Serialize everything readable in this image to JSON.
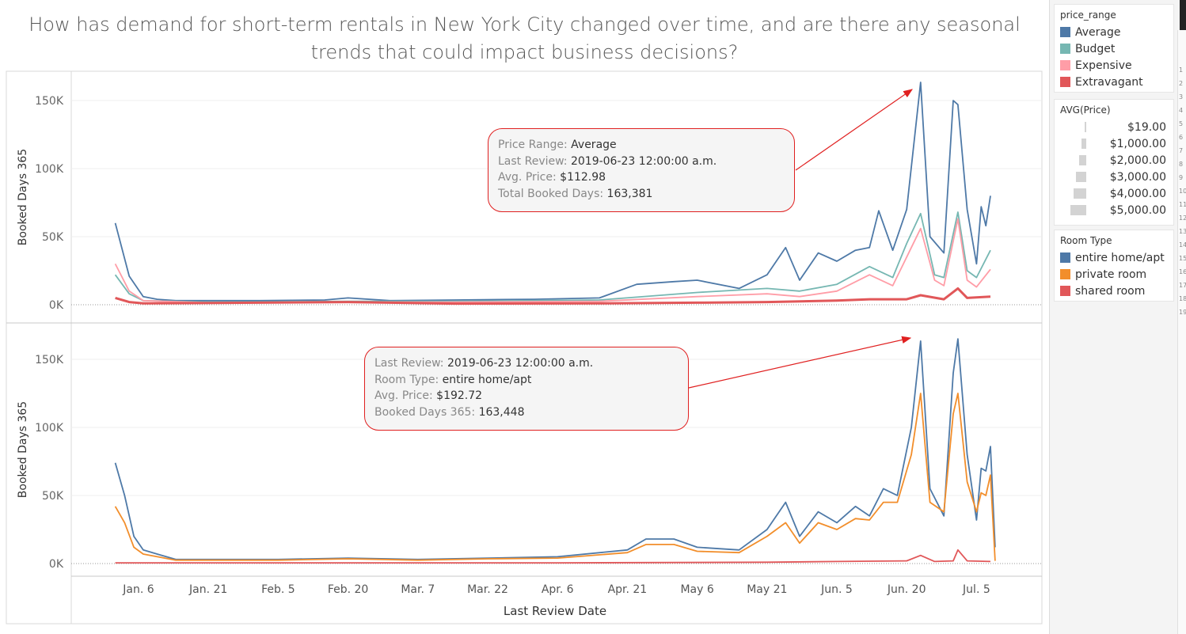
{
  "title": "How has demand for short-term rentals in New York City changed over time, and are there any seasonal trends that could impact business decisions?",
  "legends": {
    "price_range": {
      "title": "price_range",
      "items": [
        {
          "label": "Average",
          "color": "#4e79a7"
        },
        {
          "label": "Budget",
          "color": "#76b7b2"
        },
        {
          "label": "Expensive",
          "color": "#ff9da7"
        },
        {
          "label": "Extravagant",
          "color": "#e15759"
        }
      ]
    },
    "avg_price": {
      "title": "AVG(Price)",
      "items": [
        {
          "label": "$19.00",
          "value": 19
        },
        {
          "label": "$1,000.00",
          "value": 1000
        },
        {
          "label": "$2,000.00",
          "value": 2000
        },
        {
          "label": "$3,000.00",
          "value": 3000
        },
        {
          "label": "$4,000.00",
          "value": 4000
        },
        {
          "label": "$5,000.00",
          "value": 5000
        }
      ]
    },
    "room_type": {
      "title": "Room Type",
      "items": [
        {
          "label": "entire home/apt",
          "color": "#4e79a7"
        },
        {
          "label": "private room",
          "color": "#f28e2b"
        },
        {
          "label": "shared room",
          "color": "#e15759"
        }
      ]
    }
  },
  "tooltips": {
    "top": [
      {
        "key": "Price Range: ",
        "value": "Average"
      },
      {
        "key": "Last Review: ",
        "value": "2019-06-23 12:00:00 a.m."
      },
      {
        "key": "Avg. Price: ",
        "value": "$112.98"
      },
      {
        "key": "Total Booked Days: ",
        "value": "163,381"
      }
    ],
    "bottom": [
      {
        "key": "Last Review: ",
        "value": "2019-06-23 12:00:00 a.m."
      },
      {
        "key": "Room Type: ",
        "value": "entire home/apt"
      },
      {
        "key": "Avg. Price: ",
        "value": "$192.72"
      },
      {
        "key": "Booked Days 365: ",
        "value": "163,448"
      }
    ]
  },
  "scroll_ticks": [
    "1",
    "2",
    "3",
    "4",
    "5",
    "6",
    "7",
    "8",
    "9",
    "10",
    "11",
    "12",
    "13",
    "14",
    "15",
    "16",
    "17",
    "18",
    "19"
  ],
  "chart_data": [
    {
      "type": "line",
      "ylabel": "Booked Days 365",
      "ylim": [
        0,
        170000
      ],
      "yticks": [
        0,
        50000,
        100000,
        150000
      ],
      "ytick_labels": [
        "0K",
        "50K",
        "100K",
        "150K"
      ],
      "x_start": "2019-01-01",
      "x_end": "2019-07-08",
      "series": [
        {
          "name": "Average",
          "color": "#4e79a7",
          "points": [
            [
              "2019-01-01",
              60000
            ],
            [
              "2019-01-04",
              21000
            ],
            [
              "2019-01-07",
              6000
            ],
            [
              "2019-01-10",
              4000
            ],
            [
              "2019-01-14",
              3000
            ],
            [
              "2019-01-21",
              3000
            ],
            [
              "2019-02-01",
              3000
            ],
            [
              "2019-02-15",
              3500
            ],
            [
              "2019-02-20",
              5000
            ],
            [
              "2019-03-01",
              3000
            ],
            [
              "2019-03-15",
              3500
            ],
            [
              "2019-04-01",
              4000
            ],
            [
              "2019-04-15",
              5000
            ],
            [
              "2019-04-23",
              15000
            ],
            [
              "2019-05-01",
              17000
            ],
            [
              "2019-05-06",
              18000
            ],
            [
              "2019-05-15",
              12000
            ],
            [
              "2019-05-21",
              22000
            ],
            [
              "2019-05-25",
              42000
            ],
            [
              "2019-05-28",
              18000
            ],
            [
              "2019-06-01",
              38000
            ],
            [
              "2019-06-05",
              32000
            ],
            [
              "2019-06-09",
              40000
            ],
            [
              "2019-06-12",
              42000
            ],
            [
              "2019-06-14",
              69000
            ],
            [
              "2019-06-17",
              40000
            ],
            [
              "2019-06-20",
              70000
            ],
            [
              "2019-06-23",
              163381
            ],
            [
              "2019-06-25",
              50000
            ],
            [
              "2019-06-28",
              38000
            ],
            [
              "2019-06-30",
              150000
            ],
            [
              "2019-07-01",
              147000
            ],
            [
              "2019-07-03",
              70000
            ],
            [
              "2019-07-05",
              30000
            ],
            [
              "2019-07-06",
              72000
            ],
            [
              "2019-07-07",
              58000
            ],
            [
              "2019-07-08",
              80000
            ]
          ]
        },
        {
          "name": "Budget",
          "color": "#76b7b2",
          "points": [
            [
              "2019-01-01",
              22000
            ],
            [
              "2019-01-04",
              8000
            ],
            [
              "2019-01-07",
              3000
            ],
            [
              "2019-01-21",
              2000
            ],
            [
              "2019-02-20",
              2500
            ],
            [
              "2019-03-15",
              2500
            ],
            [
              "2019-04-15",
              3500
            ],
            [
              "2019-05-06",
              9000
            ],
            [
              "2019-05-21",
              12000
            ],
            [
              "2019-05-28",
              10000
            ],
            [
              "2019-06-05",
              15000
            ],
            [
              "2019-06-12",
              28000
            ],
            [
              "2019-06-17",
              20000
            ],
            [
              "2019-06-20",
              45000
            ],
            [
              "2019-06-23",
              67000
            ],
            [
              "2019-06-26",
              22000
            ],
            [
              "2019-06-28",
              20000
            ],
            [
              "2019-07-01",
              68000
            ],
            [
              "2019-07-03",
              25000
            ],
            [
              "2019-07-05",
              20000
            ],
            [
              "2019-07-08",
              40000
            ]
          ]
        },
        {
          "name": "Expensive",
          "color": "#ff9da7",
          "points": [
            [
              "2019-01-01",
              30000
            ],
            [
              "2019-01-04",
              10000
            ],
            [
              "2019-01-07",
              3000
            ],
            [
              "2019-01-21",
              1500
            ],
            [
              "2019-02-20",
              2000
            ],
            [
              "2019-03-15",
              2000
            ],
            [
              "2019-04-15",
              2500
            ],
            [
              "2019-05-06",
              6000
            ],
            [
              "2019-05-21",
              8000
            ],
            [
              "2019-05-28",
              6000
            ],
            [
              "2019-06-05",
              10000
            ],
            [
              "2019-06-12",
              22000
            ],
            [
              "2019-06-17",
              14000
            ],
            [
              "2019-06-20",
              35000
            ],
            [
              "2019-06-23",
              56000
            ],
            [
              "2019-06-26",
              18000
            ],
            [
              "2019-06-28",
              14000
            ],
            [
              "2019-07-01",
              63000
            ],
            [
              "2019-07-03",
              18000
            ],
            [
              "2019-07-05",
              13000
            ],
            [
              "2019-07-08",
              26000
            ]
          ]
        },
        {
          "name": "Extravagant",
          "color": "#e15759",
          "points": [
            [
              "2019-01-01",
              5000
            ],
            [
              "2019-01-04",
              2000
            ],
            [
              "2019-01-07",
              1000
            ],
            [
              "2019-02-20",
              2000
            ],
            [
              "2019-03-15",
              800
            ],
            [
              "2019-04-15",
              1000
            ],
            [
              "2019-05-06",
              1500
            ],
            [
              "2019-05-21",
              2000
            ],
            [
              "2019-06-05",
              3000
            ],
            [
              "2019-06-12",
              4000
            ],
            [
              "2019-06-20",
              4000
            ],
            [
              "2019-06-23",
              7000
            ],
            [
              "2019-06-28",
              4000
            ],
            [
              "2019-07-01",
              12000
            ],
            [
              "2019-07-03",
              5000
            ],
            [
              "2019-07-08",
              6000
            ]
          ]
        }
      ]
    },
    {
      "type": "line",
      "ylabel": "Booked Days 365",
      "xlabel": "Last Review Date",
      "ylim": [
        0,
        170000
      ],
      "yticks": [
        0,
        50000,
        100000,
        150000
      ],
      "ytick_labels": [
        "0K",
        "50K",
        "100K",
        "150K"
      ],
      "x_start": "2019-01-01",
      "x_end": "2019-07-08",
      "xtick_dates": [
        "2019-01-06",
        "2019-01-21",
        "2019-02-05",
        "2019-02-20",
        "2019-03-07",
        "2019-03-22",
        "2019-04-06",
        "2019-04-21",
        "2019-05-06",
        "2019-05-21",
        "2019-06-05",
        "2019-06-20",
        "2019-07-05"
      ],
      "xtick_labels": [
        "Jan. 6",
        "Jan. 21",
        "Feb. 5",
        "Feb. 20",
        "Mar. 7",
        "Mar. 22",
        "Apr. 6",
        "Apr. 21",
        "May 6",
        "May 21",
        "Jun. 5",
        "Jun. 20",
        "Jul. 5"
      ],
      "series": [
        {
          "name": "entire home/apt",
          "color": "#4e79a7",
          "points": [
            [
              "2019-01-01",
              74000
            ],
            [
              "2019-01-03",
              50000
            ],
            [
              "2019-01-05",
              20000
            ],
            [
              "2019-01-07",
              10000
            ],
            [
              "2019-01-10",
              7000
            ],
            [
              "2019-01-14",
              3000
            ],
            [
              "2019-01-21",
              3000
            ],
            [
              "2019-02-05",
              3000
            ],
            [
              "2019-02-20",
              4000
            ],
            [
              "2019-03-07",
              3000
            ],
            [
              "2019-03-22",
              4000
            ],
            [
              "2019-04-06",
              5000
            ],
            [
              "2019-04-21",
              10000
            ],
            [
              "2019-04-25",
              18000
            ],
            [
              "2019-05-01",
              18000
            ],
            [
              "2019-05-06",
              12000
            ],
            [
              "2019-05-15",
              10000
            ],
            [
              "2019-05-21",
              25000
            ],
            [
              "2019-05-25",
              45000
            ],
            [
              "2019-05-28",
              20000
            ],
            [
              "2019-06-01",
              38000
            ],
            [
              "2019-06-05",
              30000
            ],
            [
              "2019-06-09",
              42000
            ],
            [
              "2019-06-12",
              35000
            ],
            [
              "2019-06-15",
              55000
            ],
            [
              "2019-06-18",
              50000
            ],
            [
              "2019-06-21",
              100000
            ],
            [
              "2019-06-23",
              163448
            ],
            [
              "2019-06-25",
              55000
            ],
            [
              "2019-06-28",
              35000
            ],
            [
              "2019-06-30",
              140000
            ],
            [
              "2019-07-01",
              165000
            ],
            [
              "2019-07-03",
              80000
            ],
            [
              "2019-07-05",
              32000
            ],
            [
              "2019-07-06",
              70000
            ],
            [
              "2019-07-07",
              68000
            ],
            [
              "2019-07-08",
              86000
            ],
            [
              "2019-07-09",
              12000
            ]
          ]
        },
        {
          "name": "private room",
          "color": "#f28e2b",
          "points": [
            [
              "2019-01-01",
              42000
            ],
            [
              "2019-01-03",
              30000
            ],
            [
              "2019-01-05",
              12000
            ],
            [
              "2019-01-07",
              7000
            ],
            [
              "2019-01-14",
              2500
            ],
            [
              "2019-01-21",
              2500
            ],
            [
              "2019-02-05",
              2500
            ],
            [
              "2019-02-20",
              3500
            ],
            [
              "2019-03-07",
              2500
            ],
            [
              "2019-03-22",
              3500
            ],
            [
              "2019-04-06",
              4000
            ],
            [
              "2019-04-21",
              8000
            ],
            [
              "2019-04-25",
              14000
            ],
            [
              "2019-05-01",
              14000
            ],
            [
              "2019-05-06",
              9000
            ],
            [
              "2019-05-15",
              8000
            ],
            [
              "2019-05-21",
              20000
            ],
            [
              "2019-05-25",
              30000
            ],
            [
              "2019-05-28",
              15000
            ],
            [
              "2019-06-01",
              30000
            ],
            [
              "2019-06-05",
              25000
            ],
            [
              "2019-06-09",
              33000
            ],
            [
              "2019-06-12",
              32000
            ],
            [
              "2019-06-15",
              45000
            ],
            [
              "2019-06-18",
              45000
            ],
            [
              "2019-06-21",
              80000
            ],
            [
              "2019-06-23",
              125000
            ],
            [
              "2019-06-25",
              45000
            ],
            [
              "2019-06-28",
              38000
            ],
            [
              "2019-06-30",
              110000
            ],
            [
              "2019-07-01",
              125000
            ],
            [
              "2019-07-03",
              60000
            ],
            [
              "2019-07-05",
              38000
            ],
            [
              "2019-07-06",
              52000
            ],
            [
              "2019-07-07",
              50000
            ],
            [
              "2019-07-08",
              65000
            ],
            [
              "2019-07-09",
              2000
            ]
          ]
        },
        {
          "name": "shared room",
          "color": "#e15759",
          "points": [
            [
              "2019-01-01",
              500
            ],
            [
              "2019-02-20",
              500
            ],
            [
              "2019-04-06",
              500
            ],
            [
              "2019-05-21",
              1000
            ],
            [
              "2019-06-05",
              1500
            ],
            [
              "2019-06-20",
              2000
            ],
            [
              "2019-06-23",
              6000
            ],
            [
              "2019-06-26",
              1500
            ],
            [
              "2019-06-30",
              2000
            ],
            [
              "2019-07-01",
              10000
            ],
            [
              "2019-07-03",
              2000
            ],
            [
              "2019-07-08",
              1500
            ]
          ]
        }
      ]
    }
  ]
}
